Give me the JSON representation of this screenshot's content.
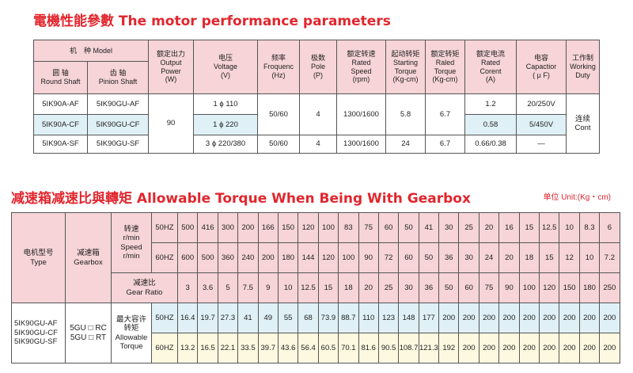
{
  "perf": {
    "title": "電機性能參數 The motor performance parameters",
    "headers": {
      "model": "机　种 Model",
      "round_shaft": "圆 轴\nRound Shaft",
      "pinion_shaft": "齿 轴\nPinion Shaft",
      "output_power": "额定出力\nOutput\nPower\n(W)",
      "voltage": "电压\nVoltage\n(V)",
      "frequency": "频率\nFroquenc\n(Hz)",
      "pole": "极数\nPole\n(P)",
      "rated_speed": "额定转速\nRated\nSpeed\n(rpm)",
      "starting_torque": "起动转矩\nStarting\nTorque\n(Kg-cm)",
      "rated_torque": "额定转矩\nRaled\nTorque\n(Kg-cm)",
      "rated_current": "额定电流\nRated\nCorent\n(A)",
      "capacitor": "电容\nCapactior\n( μ F)",
      "duty": "工作制\nWorking\nDuty"
    },
    "rows": [
      {
        "round": "5IK90A-AF",
        "pinion": "5IK90GU-AF",
        "voltage": "1 ϕ 110",
        "current": "1.2",
        "capacitor": "20/250V"
      },
      {
        "round": "5IK90A-CF",
        "pinion": "5IK90GU-CF",
        "voltage": "1 ϕ 220",
        "current": "0.58",
        "capacitor": "5/450V"
      },
      {
        "round": "5IK90A-SF",
        "pinion": "5IK90GU-SF",
        "voltage": "3 ϕ 220/380",
        "frequency": "50/60",
        "pole": "4",
        "speed": "1300/1600",
        "starting_torque": "24",
        "rated_torque": "6.7",
        "current": "0.66/0.38",
        "capacitor": "—"
      }
    ],
    "merged": {
      "power": "90",
      "frequency": "50/60",
      "pole": "4",
      "speed": "1300/1600",
      "starting_torque": "5.8",
      "rated_torque": "6.7",
      "duty": "连续\nCont"
    }
  },
  "gear": {
    "title": "减速箱减速比與轉矩 Allowable Torque When Being With Gearbox",
    "unit": "单位 Unit:(Kg・cm)",
    "type_header": "电机型号\nType",
    "gearbox_header": "减速箱\nGearbox",
    "speed_header": "转速\nr/min\nSpeed\nr/min",
    "ratio_header": "减速比\nGear Ratio",
    "torque_header": "最大容许\n转矩\nAllowable\nTorque",
    "hz50": "50HZ",
    "hz60": "60HZ",
    "types": "5IK90GU-AF\n5IK90GU-CF\n5IK90GU-SF",
    "gearboxes": "5GU □ RC\n5GU □ RT",
    "speed_50": [
      "500",
      "416",
      "300",
      "200",
      "166",
      "150",
      "120",
      "100",
      "83",
      "75",
      "60",
      "50",
      "41",
      "30",
      "25",
      "20",
      "16",
      "15",
      "12.5",
      "10",
      "8.3",
      "6"
    ],
    "speed_60": [
      "600",
      "500",
      "360",
      "240",
      "200",
      "180",
      "144",
      "120",
      "100",
      "90",
      "72",
      "60",
      "50",
      "36",
      "30",
      "24",
      "20",
      "18",
      "15",
      "12",
      "10",
      "7.2"
    ],
    "ratios": [
      "3",
      "3.6",
      "5",
      "7.5",
      "9",
      "10",
      "12.5",
      "15",
      "18",
      "20",
      "25",
      "30",
      "36",
      "50",
      "60",
      "75",
      "90",
      "100",
      "120",
      "150",
      "180",
      "250"
    ],
    "torque_50": [
      "16.4",
      "19.7",
      "27.3",
      "41",
      "49",
      "55",
      "68",
      "73.9",
      "88.7",
      "110",
      "123",
      "148",
      "177",
      "200",
      "200",
      "200",
      "200",
      "200",
      "200",
      "200",
      "200",
      "200"
    ],
    "torque_60": [
      "13.2",
      "16.5",
      "22.1",
      "33.5",
      "39.7",
      "43.6",
      "56.4",
      "60.5",
      "70.1",
      "81.6",
      "90.5",
      "108.7",
      "121.3",
      "192",
      "200",
      "200",
      "200",
      "200",
      "200",
      "200",
      "200",
      "200"
    ]
  },
  "colors": {
    "title": "#e1262d",
    "header": "#f6d4d7",
    "row_blue": "#dff0f6",
    "row_cream": "#fdf9e0"
  }
}
